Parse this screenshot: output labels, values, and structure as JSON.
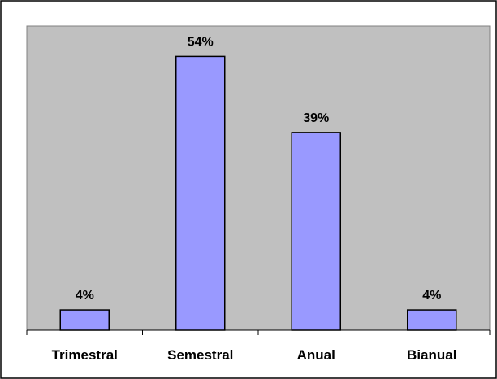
{
  "chart_data": {
    "type": "bar",
    "categories": [
      "Trimestral",
      "Semestral",
      "Anual",
      "Bianual"
    ],
    "values": [
      4,
      54,
      39,
      4
    ],
    "data_labels": [
      "4%",
      "54%",
      "39%",
      "4%"
    ],
    "title": "",
    "xlabel": "",
    "ylabel": "",
    "ylim": [
      0,
      60
    ],
    "grid": false,
    "legend": "none",
    "colors": {
      "bar_fill": "#9999ff",
      "bar_stroke": "#000000",
      "plot_background": "#c0c0c0",
      "frame": "#000000"
    }
  }
}
